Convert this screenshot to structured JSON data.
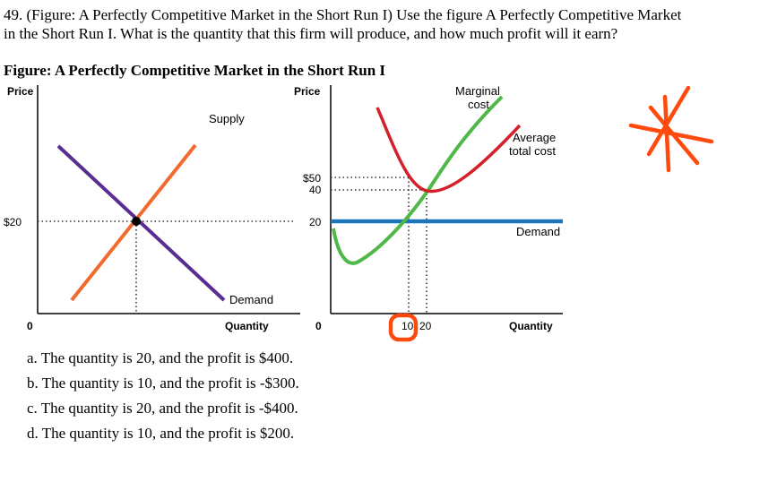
{
  "question": {
    "line1": "49. (Figure: A Perfectly Competitive Market in the Short Run I) Use the figure A Perfectly Competitive Market",
    "line2": "in the Short Run I. What is the quantity that this firm will produce, and how much profit will it earn?"
  },
  "figure_title": "Figure: A Perfectly Competitive Market in the Short Run I",
  "market_graph": {
    "y_axis_label": "Price",
    "x_axis_label": "Quantity",
    "origin_label": "0",
    "price_tick": "$20",
    "supply_label": "Supply",
    "demand_label": "Demand",
    "colors": {
      "supply": "#f26b2e",
      "demand": "#5a2d91"
    }
  },
  "firm_graph": {
    "y_axis_label": "Price",
    "x_axis_label": "Quantity",
    "origin_label": "0",
    "price_ticks": [
      "$50",
      "40",
      "20"
    ],
    "quantity_ticks": [
      "10",
      "20"
    ],
    "mc_label_line1": "Marginal",
    "mc_label_line2": "cost",
    "atc_label_line1": "Average",
    "atc_label_line2": "total cost",
    "demand_label": "Demand",
    "colors": {
      "mc": "#4fb848",
      "atc": "#d4202a",
      "demand": "#1a75bb"
    }
  },
  "annotations": {
    "circle_color": "#ff4a0e",
    "star_color": "#ff4a0e"
  },
  "options": [
    "a. The quantity is 20, and the profit is $400.",
    "b. The quantity is 10, and the profit is -$300.",
    "c. The quantity is 20, and the profit is -$400.",
    "d. The quantity is 10, and the profit is $200."
  ]
}
